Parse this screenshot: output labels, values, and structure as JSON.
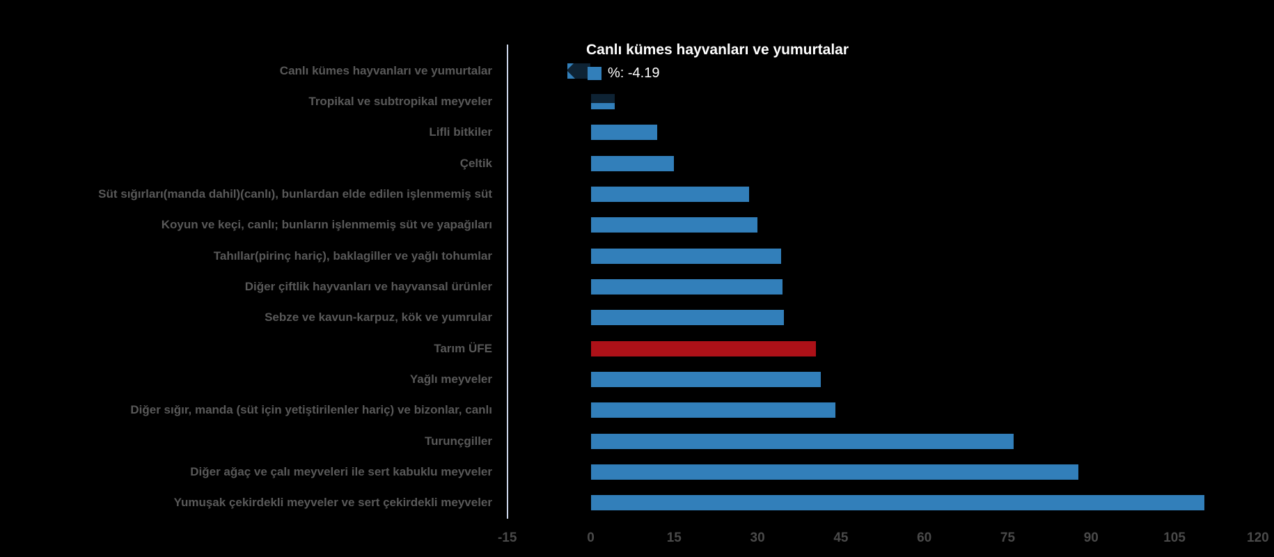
{
  "chart_data": {
    "type": "bar",
    "orientation": "horizontal",
    "title": "",
    "xlabel": "",
    "ylabel": "",
    "categories": [
      "Canlı kümes hayvanları ve yumurtalar",
      "Tropikal ve subtropikal meyveler",
      "Lifli bitkiler",
      "Çeltik",
      "Süt sığırları(manda dahil)(canlı), bunlardan elde edilen işlenmemiş süt",
      "Koyun ve keçi, canlı; bunların işlenmemiş süt ve yapağıları",
      "Tahıllar(pirinç hariç), baklagiller ve yağlı tohumlar",
      "Diğer çiftlik hayvanları ve hayvansal ürünler",
      "Sebze ve kavun-karpuz, kök ve yumrular",
      "Tarım ÜFE",
      "Yağlı meyveler",
      "Diğer sığır, manda (süt için yetiştirilenler hariç) ve bizonlar, canlı",
      "Turunçgiller",
      "Diğer ağaç ve çalı meyveleri ile sert kabuklu meyveler",
      "Yumuşak çekirdekli meyveler ve sert çekirdekli meyveler"
    ],
    "values": [
      -4.19,
      4.3,
      11.9,
      15.0,
      28.5,
      30.0,
      34.2,
      34.5,
      34.8,
      40.5,
      41.4,
      44.0,
      76.1,
      87.7,
      110.4
    ],
    "bar_color": "#327fba",
    "highlight_category": "Tarım ÜFE",
    "highlight_color": "#ad1118",
    "xticks": [
      "-15",
      "0",
      "15",
      "30",
      "45",
      "60",
      "75",
      "90",
      "105",
      "120"
    ],
    "xtick_values": [
      -15,
      0,
      15,
      30,
      45,
      60,
      75,
      90,
      105,
      120
    ],
    "xlim": [
      -15,
      120
    ],
    "grid": false,
    "legend_position": "none",
    "axis_line_color": "#ccd6eb",
    "label_color": "#595959",
    "tick_color": "#4a4a4a"
  },
  "tooltip": {
    "title": "Canlı kümes hayvanları ve yumurtalar",
    "series_label": "%",
    "value": "-4.19",
    "text": "%: -4.19",
    "swatch_color": "#327fba"
  }
}
